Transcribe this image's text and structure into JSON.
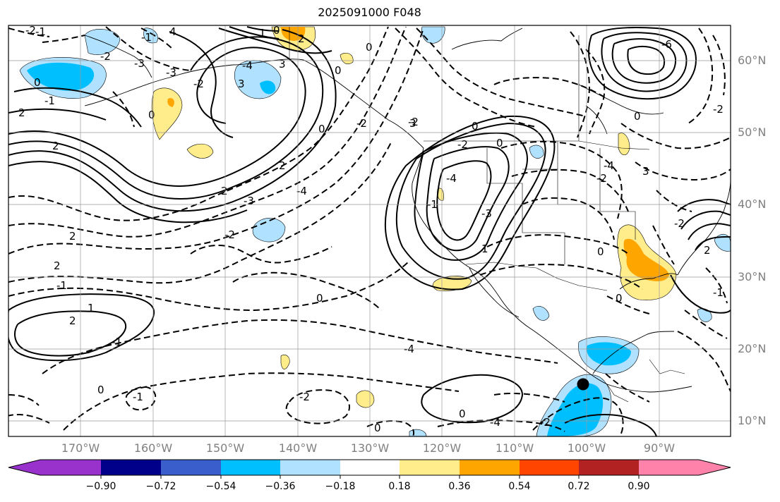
{
  "title": "2025091000 F048",
  "map": {
    "lat_labels": [
      "60°N",
      "50°N",
      "40°N",
      "30°N",
      "20°N",
      "10°N"
    ],
    "lon_labels": [
      "170°W",
      "160°W",
      "150°W",
      "140°W",
      "130°W",
      "120°W",
      "110°W",
      "100°W",
      "90°W"
    ],
    "contour_labels": [
      "-2",
      "-1",
      "4",
      "-1",
      "2",
      "-3",
      "-2",
      "0",
      "1",
      "0",
      "0",
      "-6",
      "-3",
      "3",
      "-4",
      "3",
      "-2",
      "0",
      "-1",
      "2",
      "0",
      "0",
      "-2",
      "-2",
      "2",
      "2",
      "-4",
      "2",
      "-3",
      "0",
      "-2",
      "0",
      "-4",
      "-1",
      "-2",
      "2",
      "-2",
      "-3",
      "1",
      "2",
      "0",
      "-1",
      "0",
      "1",
      "-1",
      "0",
      "-1",
      "2",
      "0",
      "-1",
      "-2",
      "0",
      "0",
      "-4",
      "-2",
      "-4",
      "-4",
      "3",
      "-2",
      "2",
      "-2",
      "3",
      "0"
    ],
    "point_marker": "black-dot"
  },
  "colorbar": {
    "colors": [
      "#9932cc",
      "#00008b",
      "#3a5fcd",
      "#00bfff",
      "#b0e2ff",
      "#ffffff",
      "#ffec8b",
      "#ffa500",
      "#ff4500",
      "#b22222",
      "#ff82ab"
    ],
    "tick_labels": [
      "−0.90",
      "−0.72",
      "−0.54",
      "−0.36",
      "−0.18",
      "0.18",
      "0.36",
      "0.54",
      "0.72",
      "0.90"
    ]
  }
}
